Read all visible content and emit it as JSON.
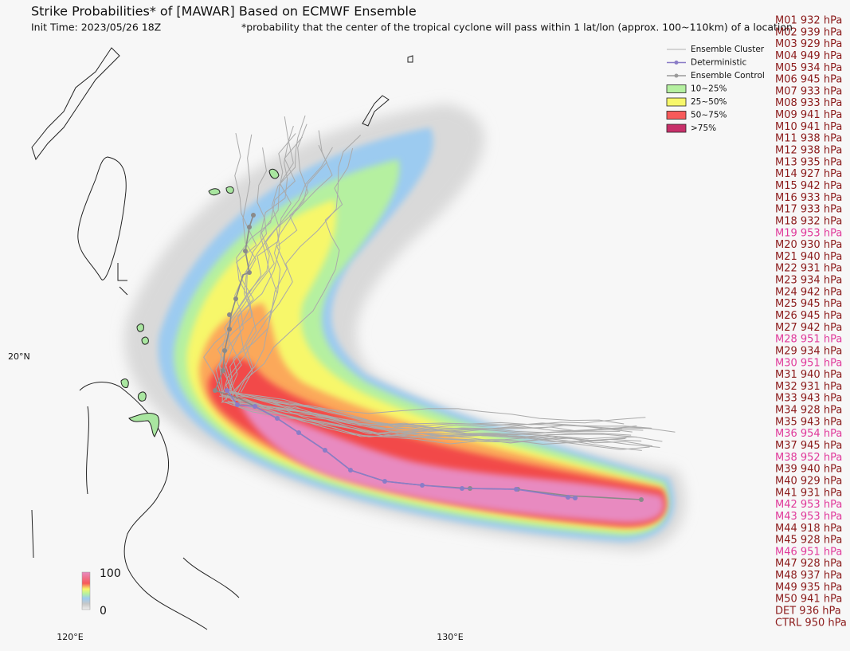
{
  "header": {
    "title": "Strike Probabilities* of [MAWAR] Based on ECMWF Ensemble",
    "init_time": "Init Time: 2023/05/26 18Z",
    "footnote": "*probability that the center of the tropical cyclone will pass within 1 lat/lon (approx. 100~110km) of a location"
  },
  "legend": {
    "items": [
      {
        "label": "Ensemble Cluster",
        "color": "#b0b0b0"
      },
      {
        "label": "Deterministic",
        "color": "#8a7cc7"
      },
      {
        "label": "Ensemble Control",
        "color": "#9a9a9a"
      },
      {
        "label": "10~25%",
        "color": "#b5f0a0"
      },
      {
        "label": "25~50%",
        "color": "#f7f76a"
      },
      {
        "label": "50~75%",
        "color": "#f75a5a"
      },
      {
        "label": ">75%",
        "color": "#c8306a"
      }
    ]
  },
  "colorbar": {
    "max_label": "100",
    "min_label": "0"
  },
  "axes": {
    "lat_labels": [
      "20°N"
    ],
    "lon_labels": [
      "120°E",
      "130°E"
    ]
  },
  "members": [
    {
      "text": "M01 932 hPa",
      "color": "#8b1a1a"
    },
    {
      "text": "M02 939 hPa",
      "color": "#8b1a1a"
    },
    {
      "text": "M03 929 hPa",
      "color": "#8b1a1a"
    },
    {
      "text": "M04 949 hPa",
      "color": "#8b1a1a"
    },
    {
      "text": "M05 934 hPa",
      "color": "#8b1a1a"
    },
    {
      "text": "M06 945 hPa",
      "color": "#8b1a1a"
    },
    {
      "text": "M07 933 hPa",
      "color": "#8b1a1a"
    },
    {
      "text": "M08 933 hPa",
      "color": "#8b1a1a"
    },
    {
      "text": "M09 941 hPa",
      "color": "#8b1a1a"
    },
    {
      "text": "M10 941 hPa",
      "color": "#8b1a1a"
    },
    {
      "text": "M11 938 hPa",
      "color": "#8b1a1a"
    },
    {
      "text": "M12 938 hPa",
      "color": "#8b1a1a"
    },
    {
      "text": "M13 935 hPa",
      "color": "#8b1a1a"
    },
    {
      "text": "M14 927 hPa",
      "color": "#8b1a1a"
    },
    {
      "text": "M15 942 hPa",
      "color": "#8b1a1a"
    },
    {
      "text": "M16 933 hPa",
      "color": "#8b1a1a"
    },
    {
      "text": "M17 933 hPa",
      "color": "#8b1a1a"
    },
    {
      "text": "M18 932 hPa",
      "color": "#8b1a1a"
    },
    {
      "text": "M19 953 hPa",
      "color": "#e0399a"
    },
    {
      "text": "M20 930 hPa",
      "color": "#8b1a1a"
    },
    {
      "text": "M21 940 hPa",
      "color": "#8b1a1a"
    },
    {
      "text": "M22 931 hPa",
      "color": "#8b1a1a"
    },
    {
      "text": "M23 934 hPa",
      "color": "#8b1a1a"
    },
    {
      "text": "M24 942 hPa",
      "color": "#8b1a1a"
    },
    {
      "text": "M25 945 hPa",
      "color": "#8b1a1a"
    },
    {
      "text": "M26 945 hPa",
      "color": "#8b1a1a"
    },
    {
      "text": "M27 942 hPa",
      "color": "#8b1a1a"
    },
    {
      "text": "M28 951 hPa",
      "color": "#e0399a"
    },
    {
      "text": "M29 934 hPa",
      "color": "#8b1a1a"
    },
    {
      "text": "M30 951 hPa",
      "color": "#e0399a"
    },
    {
      "text": "M31 940 hPa",
      "color": "#8b1a1a"
    },
    {
      "text": "M32 931 hPa",
      "color": "#8b1a1a"
    },
    {
      "text": "M33 943 hPa",
      "color": "#8b1a1a"
    },
    {
      "text": "M34 928 hPa",
      "color": "#8b1a1a"
    },
    {
      "text": "M35 943 hPa",
      "color": "#8b1a1a"
    },
    {
      "text": "M36 954 hPa",
      "color": "#e0399a"
    },
    {
      "text": "M37 945 hPa",
      "color": "#8b1a1a"
    },
    {
      "text": "M38 952 hPa",
      "color": "#e0399a"
    },
    {
      "text": "M39 940 hPa",
      "color": "#8b1a1a"
    },
    {
      "text": "M40 929 hPa",
      "color": "#8b1a1a"
    },
    {
      "text": "M41 931 hPa",
      "color": "#8b1a1a"
    },
    {
      "text": "M42 953 hPa",
      "color": "#e0399a"
    },
    {
      "text": "M43 953 hPa",
      "color": "#e0399a"
    },
    {
      "text": "M44 918 hPa",
      "color": "#8b1a1a"
    },
    {
      "text": "M45 928 hPa",
      "color": "#8b1a1a"
    },
    {
      "text": "M46 951 hPa",
      "color": "#e0399a"
    },
    {
      "text": "M47 928 hPa",
      "color": "#8b1a1a"
    },
    {
      "text": "M48 937 hPa",
      "color": "#8b1a1a"
    },
    {
      "text": "M49 935 hPa",
      "color": "#8b1a1a"
    },
    {
      "text": "M50 941 hPa",
      "color": "#8b1a1a"
    },
    {
      "text": "DET 936 hPa",
      "color": "#8b1a1a"
    },
    {
      "text": "CTRL 950 hPa",
      "color": "#8b1a1a"
    }
  ]
}
